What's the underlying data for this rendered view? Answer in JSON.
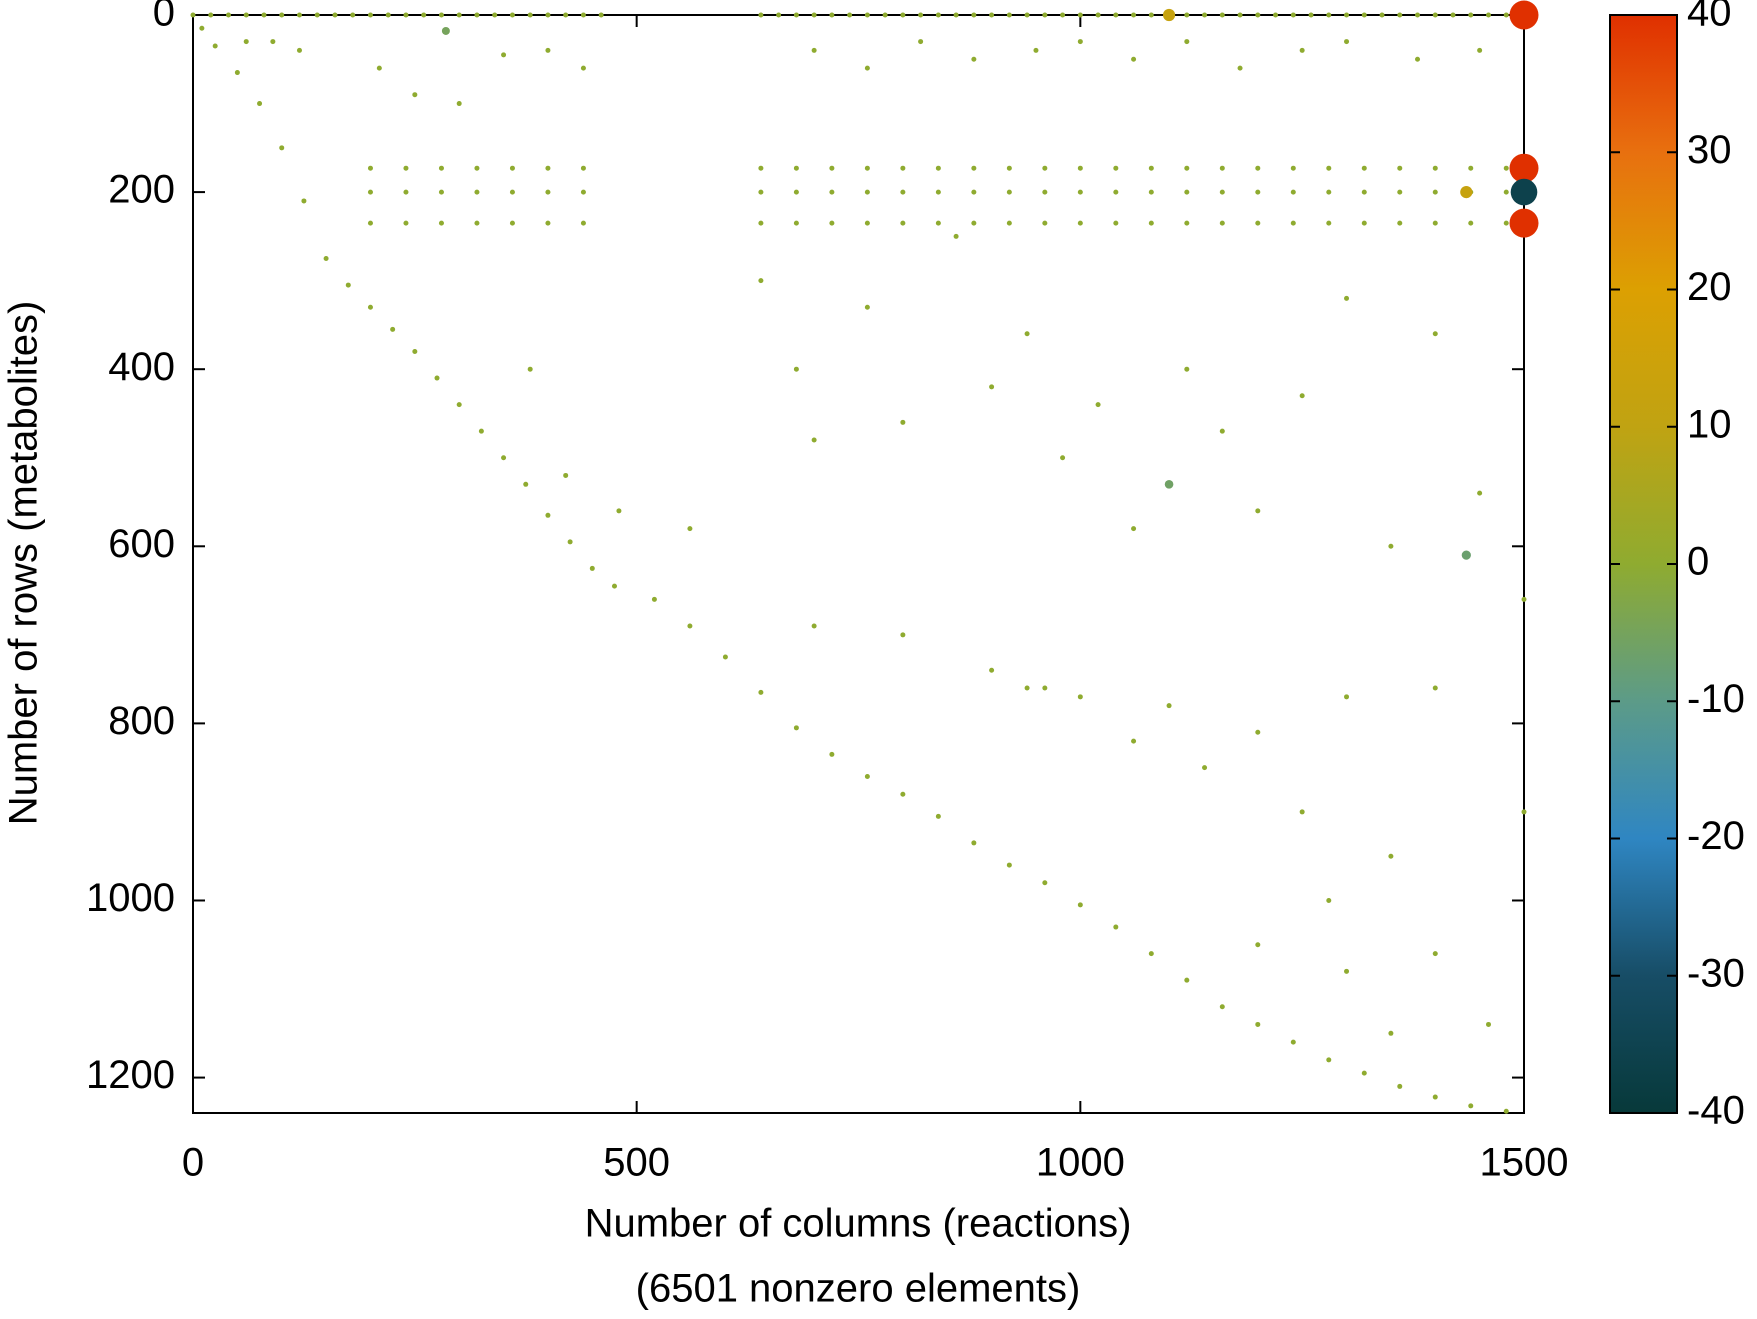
{
  "chart_data": {
    "type": "scatter",
    "xlabel": "Number of columns (reactions)",
    "subtitle": "(6501 nonzero elements)",
    "ylabel": "Number of rows (metabolites)",
    "xlim": [
      0,
      1500
    ],
    "ylim": [
      0,
      1240
    ],
    "y_reversed": true,
    "xticks": [
      0,
      500,
      1000,
      1500
    ],
    "yticks": [
      0,
      200,
      400,
      600,
      800,
      1000,
      1200
    ],
    "colorbar": {
      "lim": [
        -40,
        40
      ],
      "ticks": [
        -40,
        -30,
        -20,
        -10,
        0,
        10,
        20,
        30,
        40
      ],
      "colors": [
        "#07393a",
        "#174d66",
        "#2f86c2",
        "#5c9b88",
        "#8fab30",
        "#c0a312",
        "#dca002",
        "#e8700f",
        "#e03000"
      ]
    },
    "points": [
      [
        0,
        0,
        0
      ],
      [
        20,
        0,
        0
      ],
      [
        40,
        0,
        0
      ],
      [
        60,
        0,
        0
      ],
      [
        80,
        0,
        0
      ],
      [
        100,
        0,
        0
      ],
      [
        120,
        0,
        0
      ],
      [
        140,
        0,
        0
      ],
      [
        160,
        0,
        0
      ],
      [
        180,
        0,
        0
      ],
      [
        200,
        0,
        0
      ],
      [
        220,
        0,
        0
      ],
      [
        240,
        0,
        0
      ],
      [
        260,
        0,
        0
      ],
      [
        280,
        0,
        0
      ],
      [
        300,
        0,
        0
      ],
      [
        320,
        0,
        0
      ],
      [
        340,
        0,
        0
      ],
      [
        360,
        0,
        0
      ],
      [
        380,
        0,
        0
      ],
      [
        400,
        0,
        0
      ],
      [
        420,
        0,
        0
      ],
      [
        440,
        0,
        0
      ],
      [
        460,
        0,
        0
      ],
      [
        640,
        0,
        0
      ],
      [
        660,
        0,
        0
      ],
      [
        680,
        0,
        0
      ],
      [
        700,
        0,
        0
      ],
      [
        720,
        0,
        0
      ],
      [
        740,
        0,
        0
      ],
      [
        760,
        0,
        0
      ],
      [
        780,
        0,
        0
      ],
      [
        800,
        0,
        0
      ],
      [
        820,
        0,
        0
      ],
      [
        840,
        0,
        0
      ],
      [
        860,
        0,
        0
      ],
      [
        880,
        0,
        0
      ],
      [
        900,
        0,
        0
      ],
      [
        920,
        0,
        0
      ],
      [
        940,
        0,
        0
      ],
      [
        960,
        0,
        0
      ],
      [
        980,
        0,
        0
      ],
      [
        1000,
        0,
        0
      ],
      [
        1020,
        0,
        0
      ],
      [
        1040,
        0,
        0
      ],
      [
        1060,
        0,
        0
      ],
      [
        1080,
        0,
        0
      ],
      [
        1120,
        0,
        0
      ],
      [
        1140,
        0,
        0
      ],
      [
        1160,
        0,
        0
      ],
      [
        1180,
        0,
        0
      ],
      [
        1200,
        0,
        0
      ],
      [
        1220,
        0,
        0
      ],
      [
        1240,
        0,
        0
      ],
      [
        1260,
        0,
        0
      ],
      [
        1280,
        0,
        0
      ],
      [
        1300,
        0,
        0
      ],
      [
        1320,
        0,
        0
      ],
      [
        1340,
        0,
        0
      ],
      [
        1360,
        0,
        0
      ],
      [
        1380,
        0,
        0
      ],
      [
        1400,
        0,
        0
      ],
      [
        1420,
        0,
        0
      ],
      [
        1440,
        0,
        0
      ],
      [
        1460,
        0,
        0
      ],
      [
        1480,
        0,
        0
      ],
      [
        200,
        173,
        0
      ],
      [
        240,
        173,
        0
      ],
      [
        280,
        173,
        0
      ],
      [
        320,
        173,
        0
      ],
      [
        360,
        173,
        0
      ],
      [
        400,
        173,
        0
      ],
      [
        440,
        173,
        0
      ],
      [
        640,
        173,
        0
      ],
      [
        680,
        173,
        0
      ],
      [
        720,
        173,
        0
      ],
      [
        760,
        173,
        0
      ],
      [
        800,
        173,
        0
      ],
      [
        840,
        173,
        0
      ],
      [
        880,
        173,
        0
      ],
      [
        920,
        173,
        0
      ],
      [
        960,
        173,
        0
      ],
      [
        1000,
        173,
        0
      ],
      [
        1040,
        173,
        0
      ],
      [
        1080,
        173,
        0
      ],
      [
        1120,
        173,
        0
      ],
      [
        1160,
        173,
        0
      ],
      [
        1200,
        173,
        0
      ],
      [
        1240,
        173,
        0
      ],
      [
        1280,
        173,
        0
      ],
      [
        1320,
        173,
        0
      ],
      [
        1360,
        173,
        0
      ],
      [
        1400,
        173,
        0
      ],
      [
        1440,
        173,
        0
      ],
      [
        1480,
        173,
        0
      ],
      [
        200,
        200,
        0
      ],
      [
        240,
        200,
        0
      ],
      [
        280,
        200,
        0
      ],
      [
        320,
        200,
        0
      ],
      [
        360,
        200,
        0
      ],
      [
        400,
        200,
        0
      ],
      [
        440,
        200,
        0
      ],
      [
        640,
        200,
        0
      ],
      [
        680,
        200,
        0
      ],
      [
        720,
        200,
        0
      ],
      [
        760,
        200,
        0
      ],
      [
        800,
        200,
        0
      ],
      [
        840,
        200,
        0
      ],
      [
        880,
        200,
        0
      ],
      [
        920,
        200,
        0
      ],
      [
        960,
        200,
        0
      ],
      [
        1000,
        200,
        0
      ],
      [
        1040,
        200,
        0
      ],
      [
        1080,
        200,
        0
      ],
      [
        1120,
        200,
        0
      ],
      [
        1160,
        200,
        0
      ],
      [
        1200,
        200,
        0
      ],
      [
        1240,
        200,
        0
      ],
      [
        1280,
        200,
        0
      ],
      [
        1320,
        200,
        0
      ],
      [
        1360,
        200,
        0
      ],
      [
        1400,
        200,
        0
      ],
      [
        1440,
        200,
        0
      ],
      [
        1480,
        200,
        0
      ],
      [
        200,
        235,
        0
      ],
      [
        240,
        235,
        0
      ],
      [
        280,
        235,
        0
      ],
      [
        320,
        235,
        0
      ],
      [
        360,
        235,
        0
      ],
      [
        400,
        235,
        0
      ],
      [
        440,
        235,
        0
      ],
      [
        640,
        235,
        0
      ],
      [
        680,
        235,
        0
      ],
      [
        720,
        235,
        0
      ],
      [
        760,
        235,
        0
      ],
      [
        800,
        235,
        0
      ],
      [
        840,
        235,
        0
      ],
      [
        880,
        235,
        0
      ],
      [
        920,
        235,
        0
      ],
      [
        960,
        235,
        0
      ],
      [
        1000,
        235,
        0
      ],
      [
        1040,
        235,
        0
      ],
      [
        1080,
        235,
        0
      ],
      [
        1120,
        235,
        0
      ],
      [
        1160,
        235,
        0
      ],
      [
        1200,
        235,
        0
      ],
      [
        1240,
        235,
        0
      ],
      [
        1280,
        235,
        0
      ],
      [
        1320,
        235,
        0
      ],
      [
        1360,
        235,
        0
      ],
      [
        1400,
        235,
        0
      ],
      [
        1440,
        235,
        0
      ],
      [
        1480,
        235,
        0
      ],
      [
        10,
        15,
        0
      ],
      [
        25,
        35,
        0
      ],
      [
        50,
        65,
        0
      ],
      [
        75,
        100,
        0
      ],
      [
        100,
        150,
        0
      ],
      [
        125,
        210,
        0
      ],
      [
        150,
        275,
        0
      ],
      [
        175,
        305,
        0
      ],
      [
        200,
        330,
        0
      ],
      [
        225,
        355,
        0
      ],
      [
        250,
        380,
        0
      ],
      [
        275,
        410,
        0
      ],
      [
        300,
        440,
        0
      ],
      [
        325,
        470,
        0
      ],
      [
        350,
        500,
        0
      ],
      [
        375,
        530,
        0
      ],
      [
        400,
        565,
        0
      ],
      [
        425,
        595,
        0
      ],
      [
        450,
        625,
        0
      ],
      [
        475,
        645,
        0
      ],
      [
        520,
        660,
        0
      ],
      [
        560,
        690,
        0
      ],
      [
        600,
        725,
        0
      ],
      [
        640,
        765,
        0
      ],
      [
        680,
        805,
        0
      ],
      [
        720,
        835,
        0
      ],
      [
        760,
        860,
        0
      ],
      [
        800,
        880,
        0
      ],
      [
        840,
        905,
        0
      ],
      [
        880,
        935,
        0
      ],
      [
        920,
        960,
        0
      ],
      [
        960,
        980,
        0
      ],
      [
        1000,
        1005,
        0
      ],
      [
        1040,
        1030,
        0
      ],
      [
        1080,
        1060,
        0
      ],
      [
        1120,
        1090,
        0
      ],
      [
        1160,
        1120,
        0
      ],
      [
        1200,
        1140,
        0
      ],
      [
        1240,
        1160,
        0
      ],
      [
        1280,
        1180,
        0
      ],
      [
        1320,
        1195,
        0
      ],
      [
        1360,
        1210,
        0
      ],
      [
        1400,
        1222,
        0
      ],
      [
        1440,
        1232,
        0
      ],
      [
        1480,
        1238,
        0
      ],
      [
        60,
        30,
        0
      ],
      [
        90,
        30,
        0
      ],
      [
        120,
        40,
        0
      ],
      [
        210,
        60,
        0
      ],
      [
        250,
        90,
        0
      ],
      [
        300,
        100,
        0
      ],
      [
        350,
        45,
        0
      ],
      [
        400,
        40,
        0
      ],
      [
        440,
        60,
        0
      ],
      [
        700,
        40,
        0
      ],
      [
        760,
        60,
        0
      ],
      [
        820,
        30,
        0
      ],
      [
        880,
        50,
        0
      ],
      [
        950,
        40,
        0
      ],
      [
        1000,
        30,
        0
      ],
      [
        1060,
        50,
        0
      ],
      [
        1120,
        30,
        0
      ],
      [
        1180,
        60,
        0
      ],
      [
        1250,
        40,
        0
      ],
      [
        1300,
        30,
        0
      ],
      [
        1380,
        50,
        0
      ],
      [
        1450,
        40,
        0
      ],
      [
        380,
        400,
        0
      ],
      [
        420,
        520,
        0
      ],
      [
        480,
        560,
        0
      ],
      [
        560,
        580,
        0
      ],
      [
        640,
        300,
        0
      ],
      [
        680,
        400,
        0
      ],
      [
        700,
        480,
        0
      ],
      [
        760,
        330,
        0
      ],
      [
        800,
        460,
        0
      ],
      [
        860,
        250,
        0
      ],
      [
        900,
        420,
        0
      ],
      [
        940,
        360,
        0
      ],
      [
        980,
        500,
        0
      ],
      [
        1020,
        440,
        0
      ],
      [
        1060,
        580,
        0
      ],
      [
        1120,
        400,
        0
      ],
      [
        1160,
        470,
        0
      ],
      [
        1200,
        560,
        0
      ],
      [
        1250,
        430,
        0
      ],
      [
        1300,
        320,
        0
      ],
      [
        1350,
        600,
        0
      ],
      [
        1400,
        360,
        0
      ],
      [
        1450,
        540,
        0
      ],
      [
        700,
        690,
        0
      ],
      [
        800,
        700,
        0
      ],
      [
        900,
        740,
        0
      ],
      [
        1000,
        770,
        0
      ],
      [
        1100,
        780,
        0
      ],
      [
        1200,
        810,
        0
      ],
      [
        1300,
        770,
        0
      ],
      [
        1400,
        760,
        0
      ],
      [
        940,
        760,
        0
      ],
      [
        960,
        760,
        0
      ],
      [
        1060,
        820,
        0
      ],
      [
        1140,
        850,
        0
      ],
      [
        1250,
        900,
        0
      ],
      [
        1350,
        950,
        0
      ],
      [
        1200,
        1050,
        0
      ],
      [
        1300,
        1080,
        0
      ],
      [
        1400,
        1060,
        0
      ],
      [
        1280,
        1000,
        0
      ],
      [
        1350,
        1150,
        0
      ],
      [
        1460,
        1140,
        0
      ],
      [
        1500,
        660,
        0
      ],
      [
        1500,
        900,
        0
      ],
      [
        285,
        18,
        -5
      ],
      [
        1100,
        0,
        12
      ],
      [
        1435,
        200,
        12
      ],
      [
        1100,
        530,
        -6
      ],
      [
        1435,
        610,
        -7
      ],
      [
        1500,
        0,
        40
      ],
      [
        1500,
        173,
        40
      ],
      [
        1500,
        235,
        40
      ],
      [
        1500,
        200,
        -36
      ]
    ]
  }
}
